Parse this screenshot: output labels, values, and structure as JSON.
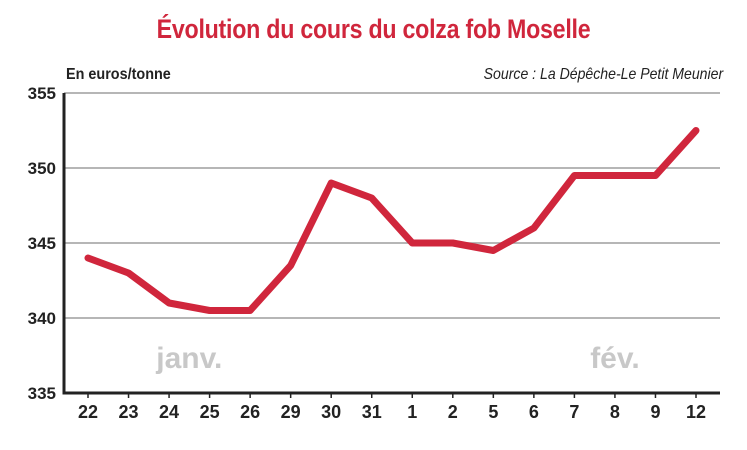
{
  "chart_data": {
    "type": "line",
    "title": "Évolution du cours du colza fob Moselle",
    "ylabel": "En euros/tonne",
    "source": "Source : La Dépêche-Le Petit Meunier",
    "categories": [
      "22",
      "23",
      "24",
      "25",
      "26",
      "29",
      "30",
      "31",
      "1",
      "2",
      "5",
      "6",
      "7",
      "8",
      "9",
      "12"
    ],
    "series": [
      {
        "values": [
          344,
          343,
          341,
          340.5,
          340.5,
          343.5,
          349,
          348,
          345,
          345,
          344.5,
          346,
          349.5,
          349.5,
          349.5,
          352.5
        ]
      }
    ],
    "ylim": [
      335,
      355
    ],
    "yticks": [
      335,
      340,
      345,
      350,
      355
    ],
    "grid": true,
    "annotations": [
      {
        "text": "janv.",
        "category_index": 2.5
      },
      {
        "text": "fév.",
        "category_index": 13.0
      }
    ],
    "colors": {
      "line": "#d0263c",
      "grid": "#9e9e9e",
      "axis": "#222222",
      "month_label": "#c8c8c8"
    }
  }
}
